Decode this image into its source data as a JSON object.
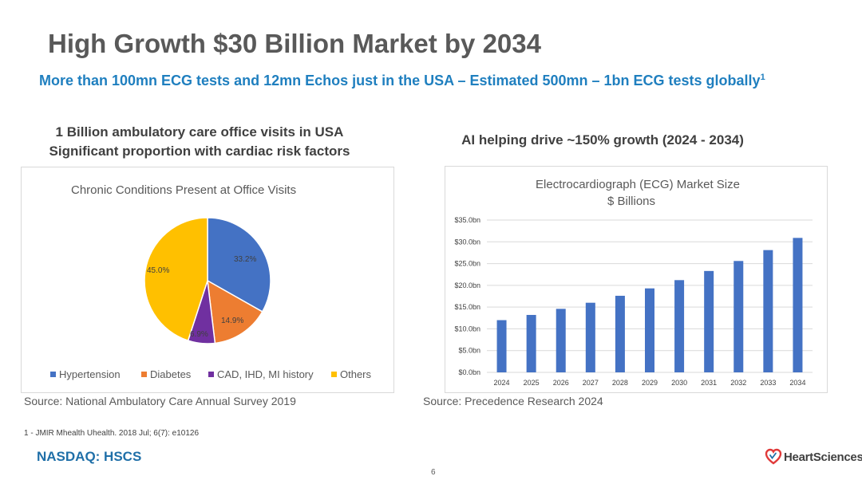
{
  "slide": {
    "title": "High Growth $30 Billion Market by 2034",
    "subtitle": "More than 100mn ECG tests and 12mn Echos just in the USA – Estimated 500mn – 1bn ECG tests globally",
    "subtitle_sup": "1",
    "left_heading_line1": "1 Billion ambulatory care office visits in USA",
    "left_heading_line2": "Significant proportion with cardiac risk factors",
    "right_heading": "AI helping drive ~150% growth (2024 - 2034)",
    "source_left": "Source: National Ambulatory Care Annual Survey 2019",
    "source_right": "Source: Precedence Research 2024",
    "footnote": "1 - JMIR Mhealth Uhealth. 2018 Jul; 6(7): e10126",
    "ticker": "NASDAQ: HSCS",
    "page_number": "6",
    "logo_text": "HeartSciences",
    "logo_icon": "heart-icon",
    "logo_color": "#e03a3a"
  },
  "chart_data": [
    {
      "type": "pie",
      "title": "Chronic Conditions Present at Office Visits",
      "categories": [
        "Hypertension",
        "Diabetes",
        "CAD, IHD, MI history",
        "Others"
      ],
      "values": [
        33.2,
        14.9,
        6.9,
        45.0
      ],
      "labels": [
        "33.2%",
        "14.9%",
        "6.9%",
        "45.0%"
      ],
      "colors": [
        "#4472c4",
        "#ed7d31",
        "#7030a0",
        "#ffc000"
      ],
      "legend": "bottom"
    },
    {
      "type": "bar",
      "title": "Electrocardiograph (ECG) Market Size",
      "subtitle": "$ Billions",
      "categories": [
        "2024",
        "2025",
        "2026",
        "2027",
        "2028",
        "2029",
        "2030",
        "2031",
        "2032",
        "2033",
        "2034"
      ],
      "values": [
        12.0,
        13.2,
        14.6,
        16.0,
        17.6,
        19.3,
        21.2,
        23.3,
        25.6,
        28.1,
        30.9
      ],
      "ylim": [
        0,
        35
      ],
      "yticks": [
        "$0.0bn",
        "$5.0bn",
        "$10.0bn",
        "$15.0bn",
        "$20.0bn",
        "$25.0bn",
        "$30.0bn",
        "$35.0bn"
      ],
      "color": "#4472c4",
      "grid": true
    }
  ]
}
